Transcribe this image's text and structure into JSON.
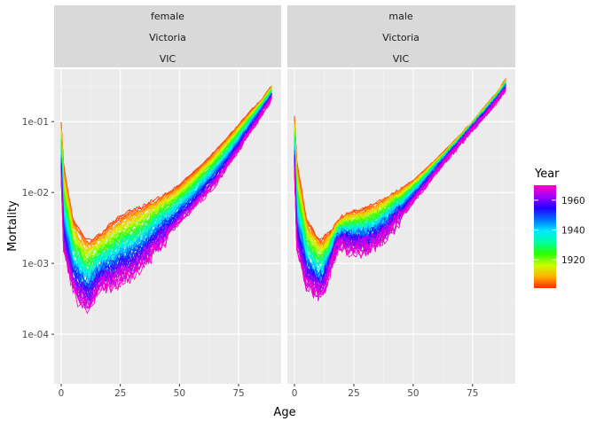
{
  "chart_data": {
    "type": "line",
    "xlabel": "Age",
    "ylabel": "Mortality",
    "x_scale": "linear",
    "y_scale": "log10",
    "xlim": [
      -3,
      93
    ],
    "ylim": [
      2e-05,
      0.55
    ],
    "x_ticks": [
      0,
      25,
      50,
      75
    ],
    "x_tick_labels": [
      "0",
      "25",
      "50",
      "75"
    ],
    "y_ticks": [
      0.0001,
      0.001,
      0.01,
      0.1
    ],
    "y_tick_labels": [
      "1e-04",
      "1e-03",
      "1e-02",
      "1e-01"
    ],
    "grid": true,
    "facets": [
      {
        "strip_lines": [
          "female",
          "Victoria",
          "VIC"
        ]
      },
      {
        "strip_lines": [
          "male",
          "Victoria",
          "VIC"
        ]
      }
    ],
    "legend": {
      "title": "Year",
      "position": "right",
      "breaks": [
        1920,
        1940,
        1960
      ],
      "break_labels": [
        "1920",
        "1940",
        "1960"
      ],
      "range": [
        1901,
        1970
      ],
      "colors": [
        "#ff2a00",
        "#ffb000",
        "#c8ff00",
        "#2bff00",
        "#00ffa0",
        "#00e8ff",
        "#0070ff",
        "#2200ff",
        "#a000ff",
        "#ff00c0"
      ]
    },
    "year_range": [
      1901,
      1970
    ],
    "ages": [
      0,
      1,
      5,
      10,
      12,
      15,
      18,
      20,
      22,
      25,
      30,
      35,
      40,
      45,
      50,
      55,
      60,
      65,
      70,
      75,
      80,
      85,
      89
    ],
    "series": [
      {
        "facet": "female",
        "year": 1901,
        "values": [
          0.1,
          0.025,
          0.004,
          0.0022,
          0.0021,
          0.0024,
          0.0028,
          0.0033,
          0.0038,
          0.0045,
          0.0055,
          0.0065,
          0.0078,
          0.0098,
          0.013,
          0.018,
          0.026,
          0.038,
          0.058,
          0.09,
          0.14,
          0.21,
          0.32
        ]
      },
      {
        "facet": "female",
        "year": 1970,
        "values": [
          0.016,
          0.0015,
          0.0004,
          0.00025,
          0.00025,
          0.0004,
          0.0005,
          0.0005,
          0.0005,
          0.0006,
          0.0007,
          0.001,
          0.0016,
          0.0025,
          0.0038,
          0.0055,
          0.0085,
          0.013,
          0.022,
          0.04,
          0.072,
          0.13,
          0.21
        ]
      },
      {
        "facet": "male",
        "year": 1901,
        "values": [
          0.12,
          0.028,
          0.0042,
          0.0022,
          0.0022,
          0.0028,
          0.0038,
          0.0045,
          0.005,
          0.0053,
          0.006,
          0.0072,
          0.009,
          0.0115,
          0.015,
          0.021,
          0.03,
          0.044,
          0.066,
          0.1,
          0.16,
          0.25,
          0.4
        ]
      },
      {
        "facet": "male",
        "year": 1970,
        "values": [
          0.02,
          0.0015,
          0.0005,
          0.00035,
          0.0004,
          0.0008,
          0.0017,
          0.0018,
          0.0017,
          0.0016,
          0.0016,
          0.0019,
          0.0028,
          0.0045,
          0.0075,
          0.012,
          0.02,
          0.032,
          0.05,
          0.08,
          0.12,
          0.19,
          0.28
        ]
      }
    ]
  }
}
